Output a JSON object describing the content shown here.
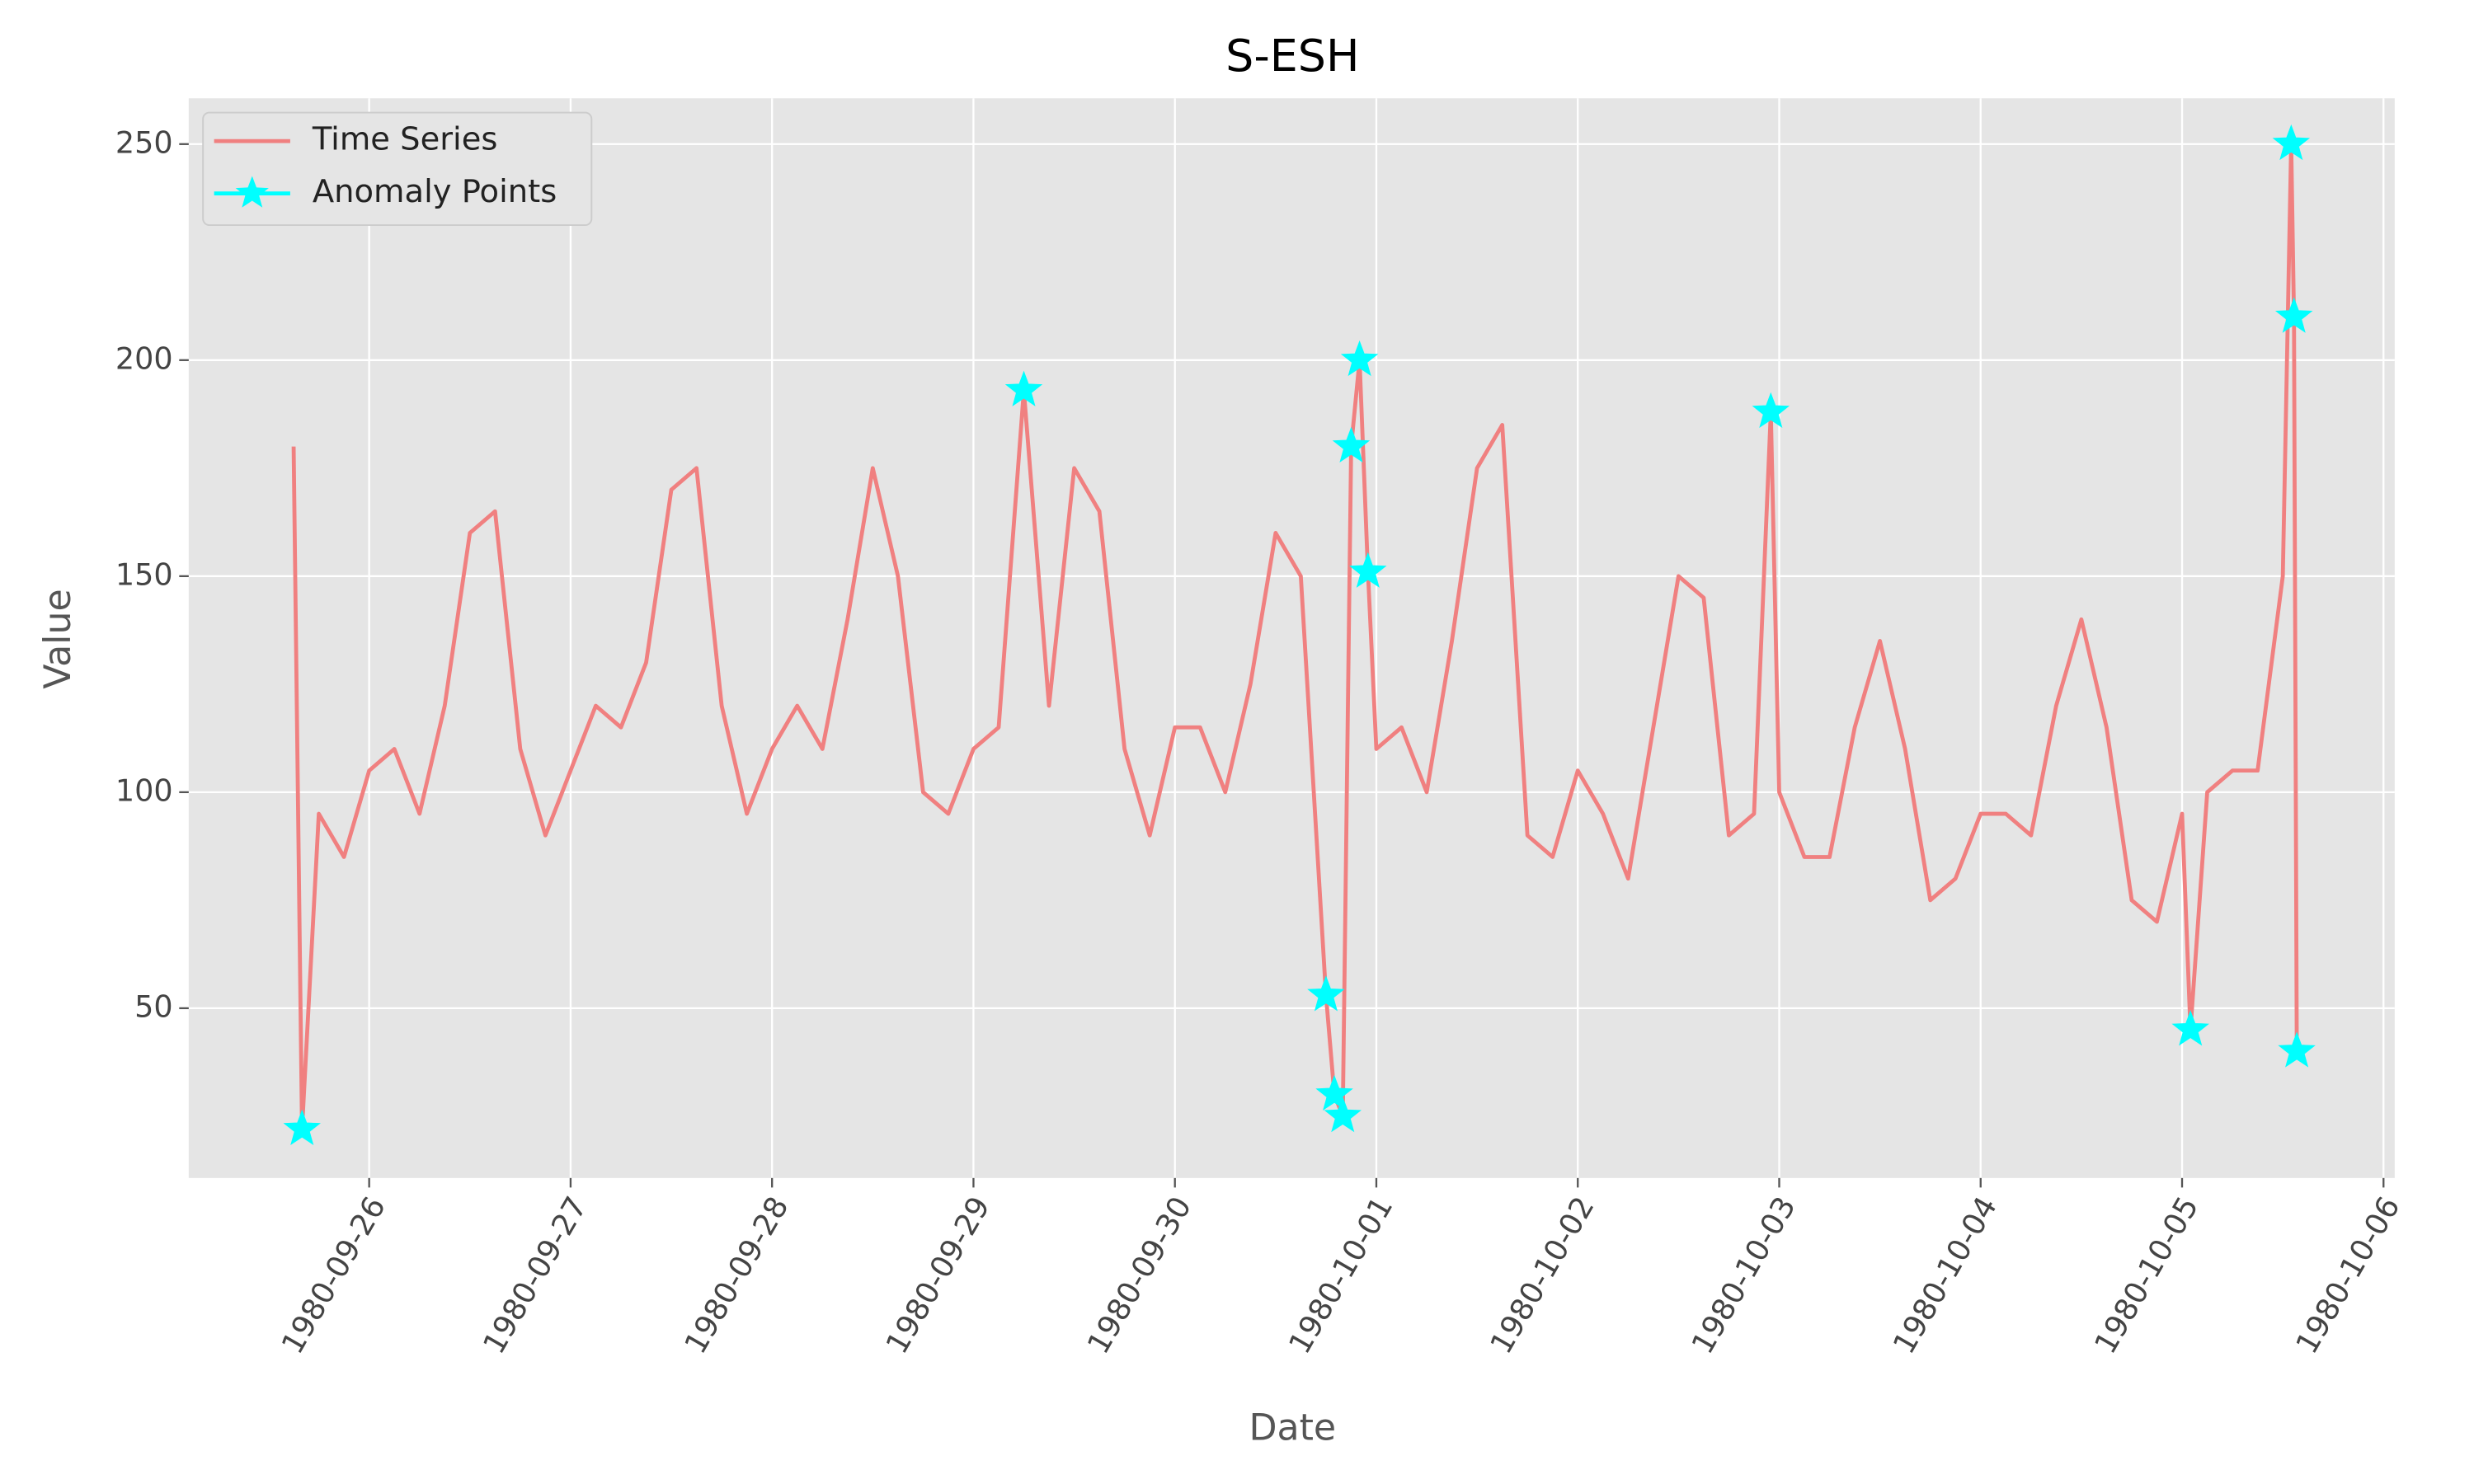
{
  "chart_data": {
    "type": "line",
    "title": "S-ESH",
    "xlabel": "Date",
    "ylabel": "Value",
    "xlim": [
      "1980-09-25 02:30",
      "1980-10-06 01:20"
    ],
    "xticks": [
      "1980-09-26",
      "1980-09-27",
      "1980-09-28",
      "1980-09-29",
      "1980-09-30",
      "1980-10-01",
      "1980-10-02",
      "1980-10-03",
      "1980-10-04",
      "1980-10-05",
      "1980-10-06"
    ],
    "ylim": [
      10.7,
      260.6
    ],
    "yticks": [
      50,
      100,
      150,
      200,
      250
    ],
    "grid": true,
    "legend": "upper left",
    "series": [
      {
        "name": "Time Series",
        "color": "#f08080",
        "type": "line",
        "x": [
          "1980-09-25 15:00",
          "1980-09-25 16:00",
          "1980-09-25 18:00",
          "1980-09-25 21:00",
          "1980-09-26 00:00",
          "1980-09-26 03:00",
          "1980-09-26 06:00",
          "1980-09-26 09:00",
          "1980-09-26 12:00",
          "1980-09-26 15:00",
          "1980-09-26 18:00",
          "1980-09-26 21:00",
          "1980-09-27 00:00",
          "1980-09-27 03:00",
          "1980-09-27 06:00",
          "1980-09-27 09:00",
          "1980-09-27 12:00",
          "1980-09-27 15:00",
          "1980-09-27 18:00",
          "1980-09-27 21:00",
          "1980-09-28 00:00",
          "1980-09-28 03:00",
          "1980-09-28 06:00",
          "1980-09-28 09:00",
          "1980-09-28 12:00",
          "1980-09-28 15:00",
          "1980-09-28 18:00",
          "1980-09-28 21:00",
          "1980-09-29 00:00",
          "1980-09-29 03:00",
          "1980-09-29 06:00",
          "1980-09-29 09:00",
          "1980-09-29 12:00",
          "1980-09-29 15:00",
          "1980-09-29 18:00",
          "1980-09-29 21:00",
          "1980-09-30 00:00",
          "1980-09-30 03:00",
          "1980-09-30 06:00",
          "1980-09-30 09:00",
          "1980-09-30 12:00",
          "1980-09-30 15:00",
          "1980-09-30 18:00",
          "1980-09-30 19:00",
          "1980-09-30 20:00",
          "1980-09-30 21:00",
          "1980-09-30 22:00",
          "1980-09-30 23:00",
          "1980-10-01 00:00",
          "1980-10-01 03:00",
          "1980-10-01 06:00",
          "1980-10-01 09:00",
          "1980-10-01 12:00",
          "1980-10-01 15:00",
          "1980-10-01 18:00",
          "1980-10-01 21:00",
          "1980-10-02 00:00",
          "1980-10-02 03:00",
          "1980-10-02 06:00",
          "1980-10-02 09:00",
          "1980-10-02 12:00",
          "1980-10-02 15:00",
          "1980-10-02 18:00",
          "1980-10-02 21:00",
          "1980-10-02 23:00",
          "1980-10-03 00:00",
          "1980-10-03 03:00",
          "1980-10-03 06:00",
          "1980-10-03 09:00",
          "1980-10-03 12:00",
          "1980-10-03 15:00",
          "1980-10-03 18:00",
          "1980-10-03 21:00",
          "1980-10-04 00:00",
          "1980-10-04 03:00",
          "1980-10-04 06:00",
          "1980-10-04 09:00",
          "1980-10-04 12:00",
          "1980-10-04 15:00",
          "1980-10-04 18:00",
          "1980-10-04 21:00",
          "1980-10-05 00:00",
          "1980-10-05 01:00",
          "1980-10-05 03:00",
          "1980-10-05 06:00",
          "1980-10-05 09:00",
          "1980-10-05 12:00",
          "1980-10-05 13:00",
          "1980-10-05 13:20",
          "1980-10-05 13:40"
        ],
        "values": [
          180,
          22,
          95,
          85,
          105,
          110,
          95,
          120,
          160,
          165,
          110,
          90,
          105,
          120,
          115,
          130,
          170,
          175,
          120,
          95,
          110,
          120,
          110,
          140,
          175,
          150,
          100,
          95,
          110,
          115,
          193,
          120,
          175,
          165,
          110,
          90,
          115,
          115,
          100,
          125,
          160,
          150,
          53,
          30,
          25,
          180,
          200,
          151,
          110,
          115,
          100,
          135,
          175,
          185,
          90,
          85,
          105,
          95,
          80,
          115,
          150,
          145,
          90,
          95,
          188,
          100,
          85,
          85,
          115,
          135,
          110,
          75,
          80,
          95,
          95,
          90,
          120,
          140,
          115,
          75,
          70,
          95,
          45,
          100,
          105,
          105,
          150,
          250,
          210,
          40
        ]
      },
      {
        "name": "Anomaly Points",
        "color": "#00ffff",
        "type": "scatter",
        "x": [
          "1980-09-25 16:00",
          "1980-09-29 06:00",
          "1980-09-30 18:00",
          "1980-09-30 19:00",
          "1980-09-30 20:00",
          "1980-09-30 21:00",
          "1980-09-30 22:00",
          "1980-09-30 23:00",
          "1980-10-02 23:00",
          "1980-10-05 01:00",
          "1980-10-05 13:00",
          "1980-10-05 13:20",
          "1980-10-05 13:40"
        ],
        "values": [
          22,
          193,
          53,
          30,
          25,
          180,
          200,
          151,
          188,
          45,
          250,
          210,
          40
        ]
      }
    ]
  }
}
